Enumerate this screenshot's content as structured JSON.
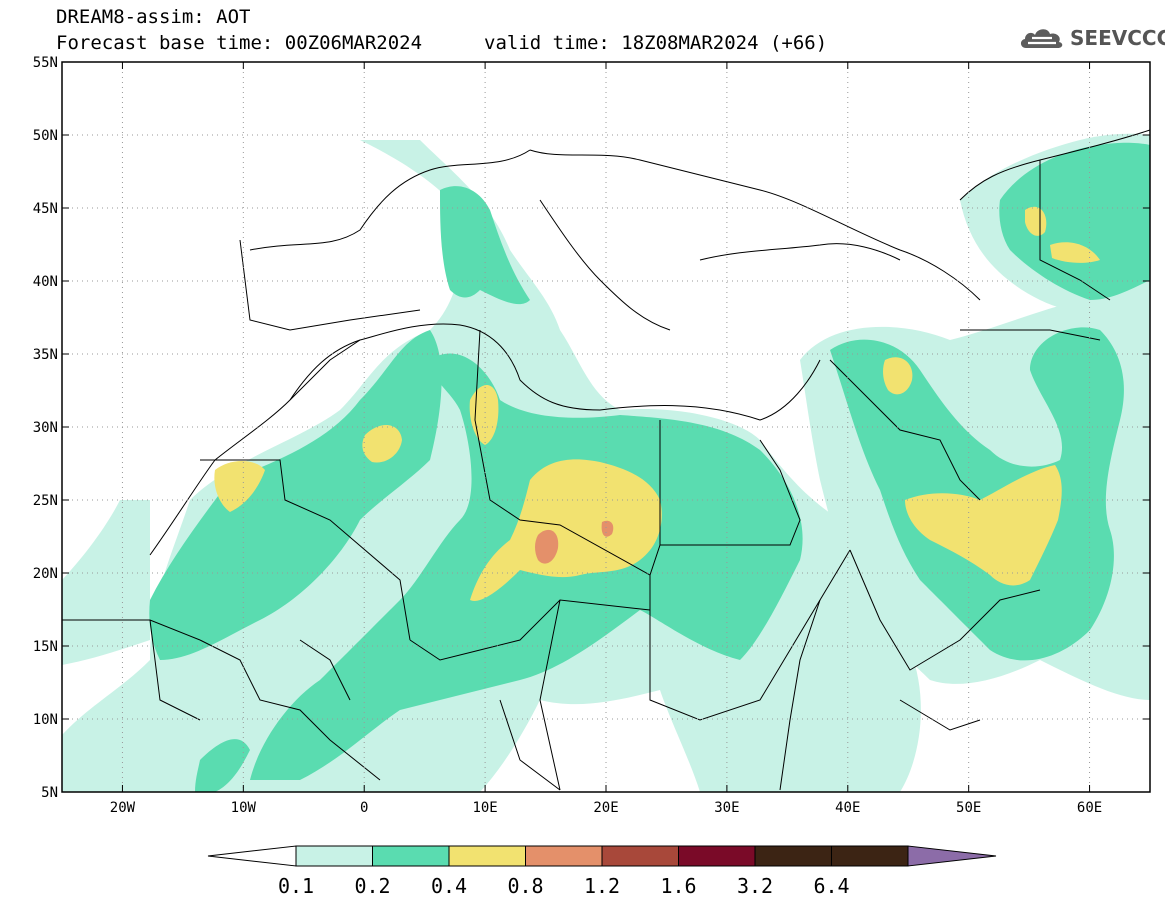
{
  "title": {
    "line1": "DREAM8-assim: AOT",
    "base_time": "Forecast base time: 00Z06MAR2024",
    "valid_time": "valid time: 18Z08MAR2024 (+66)"
  },
  "logo": {
    "text": "SEEVCCC",
    "icon": "cloud-icon"
  },
  "map": {
    "lat_labels": [
      "55N",
      "50N",
      "45N",
      "40N",
      "35N",
      "30N",
      "25N",
      "20N",
      "15N",
      "10N",
      "5N"
    ],
    "lon_labels": [
      "20W",
      "10W",
      "0",
      "10E",
      "20E",
      "30E",
      "40E",
      "50E",
      "60E"
    ],
    "extent": {
      "lon_min": -25,
      "lon_max": 65,
      "lat_min": 5,
      "lat_max": 55
    }
  },
  "colorbar": {
    "labels": [
      "0.1",
      "0.2",
      "0.4",
      "0.8",
      "1.2",
      "1.6",
      "3.2",
      "6.4"
    ],
    "colors": [
      "#c8f2e6",
      "#5adcb0",
      "#f2e270",
      "#e4906a",
      "#a8483a",
      "#7a0a28",
      "#3c2414",
      "#8c6ca8"
    ]
  },
  "colors": {
    "level_01": "#c8f2e6",
    "level_02": "#5adcb0",
    "level_04": "#f2e270",
    "level_08": "#e4906a",
    "level_12": "#a8483a"
  }
}
